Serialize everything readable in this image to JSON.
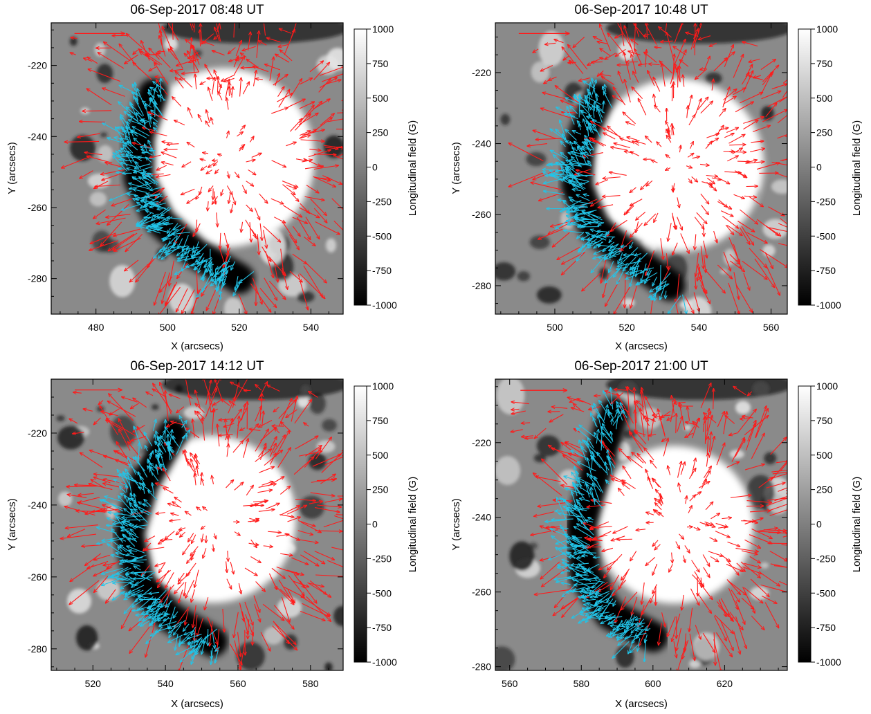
{
  "figure": {
    "background": "#ffffff"
  },
  "colors": {
    "positive_vector": "#ff1a1a",
    "negative_vector": "#22c4e8",
    "frame": "#000000"
  },
  "chart_data": [
    {
      "type": "heatmap",
      "title": "06-Sep-2017 08:48 UT",
      "xlabel": "X (arcsecs)",
      "ylabel": "Y (arcsecs)",
      "xlim": [
        467.5,
        549
      ],
      "ylim": [
        -290,
        -208
      ],
      "xticks": [
        480,
        500,
        520,
        540
      ],
      "yticks": [
        -220,
        -240,
        -260,
        -280
      ],
      "colorbar": {
        "label": "Longitudinal field (G)",
        "range": [
          -1000,
          1000
        ],
        "ticks": [
          1000,
          750,
          500,
          250,
          0,
          -250,
          -500,
          -750,
          -1000
        ]
      },
      "features": {
        "positive_center": [
          516,
          -246
        ],
        "positive_radius": 25,
        "negative_lane": [
          [
            496,
            -228
          ],
          [
            492,
            -240
          ],
          [
            492,
            -252
          ],
          [
            498,
            -264
          ],
          [
            508,
            -273
          ],
          [
            520,
            -280
          ]
        ]
      },
      "reference_arrow": {
        "x": 474,
        "y": -211,
        "length": 14
      }
    },
    {
      "type": "heatmap",
      "title": "06-Sep-2017 10:48 UT",
      "xlabel": "X (arcsecs)",
      "ylabel": "Y (arcsecs)",
      "xlim": [
        483.5,
        564.5
      ],
      "ylim": [
        -288,
        -206
      ],
      "xticks": [
        500,
        520,
        540,
        560
      ],
      "yticks": [
        -220,
        -240,
        -260,
        -280
      ],
      "colorbar": {
        "label": "Longitudinal field (G)",
        "range": [
          -1000,
          1000
        ],
        "ticks": [
          1000,
          750,
          500,
          250,
          0,
          -250,
          -500,
          -750,
          -1000
        ]
      },
      "features": {
        "positive_center": [
          534,
          -246
        ],
        "positive_radius": 24,
        "negative_lane": [
          [
            512,
            -227
          ],
          [
            507,
            -240
          ],
          [
            506,
            -252
          ],
          [
            511,
            -264
          ],
          [
            521,
            -272
          ],
          [
            532,
            -280
          ]
        ]
      },
      "reference_arrow": {
        "x": 490,
        "y": -209,
        "length": 14
      }
    },
    {
      "type": "heatmap",
      "title": "06-Sep-2017 14:12 UT",
      "xlabel": "X (arcsecs)",
      "ylabel": "Y (arcsecs)",
      "xlim": [
        508.5,
        589
      ],
      "ylim": [
        -286,
        -205
      ],
      "xticks": [
        520,
        540,
        560,
        580
      ],
      "yticks": [
        -220,
        -240,
        -260,
        -280
      ],
      "colorbar": {
        "label": "Longitudinal field (G)",
        "range": [
          -1000,
          1000
        ],
        "ticks": [
          1000,
          750,
          500,
          250,
          0,
          -250,
          -500,
          -750,
          -1000
        ]
      },
      "features": {
        "positive_center": [
          553,
          -244
        ],
        "positive_radius": 23,
        "negative_lane": [
          [
            542,
            -220
          ],
          [
            534,
            -234
          ],
          [
            530,
            -248
          ],
          [
            533,
            -262
          ],
          [
            541,
            -271
          ],
          [
            553,
            -278
          ]
        ]
      },
      "reference_arrow": {
        "x": 515,
        "y": -208,
        "length": 13
      }
    },
    {
      "type": "heatmap",
      "title": "06-Sep-2017 21:00 UT",
      "xlabel": "X (arcsecs)",
      "ylabel": "Y (arcsecs)",
      "xlim": [
        556,
        637.5
      ],
      "ylim": [
        -281,
        -203
      ],
      "xticks": [
        560,
        580,
        600,
        620
      ],
      "yticks": [
        -220,
        -240,
        -260,
        -280
      ],
      "colorbar": {
        "label": "Longitudinal field (G)",
        "range": [
          -1000,
          1000
        ],
        "ticks": [
          1000,
          750,
          500,
          250,
          0,
          -250,
          -500,
          -750,
          -1000
        ]
      },
      "features": {
        "positive_center": [
          606,
          -242
        ],
        "positive_radius": 22,
        "negative_lane": [
          [
            589,
            -212
          ],
          [
            584,
            -228
          ],
          [
            580,
            -242
          ],
          [
            581,
            -256
          ],
          [
            588,
            -266
          ],
          [
            600,
            -272
          ]
        ]
      },
      "reference_arrow": {
        "x": 563,
        "y": -206,
        "length": 13
      }
    }
  ]
}
